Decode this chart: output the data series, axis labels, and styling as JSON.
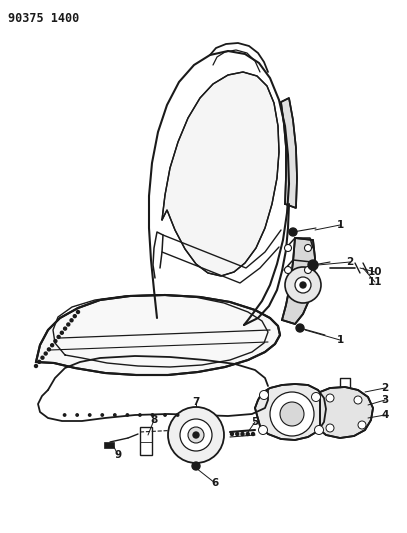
{
  "title_code": "90375 1400",
  "background_color": "#ffffff",
  "line_color": "#1a1a1a",
  "figure_width": 4.07,
  "figure_height": 5.33,
  "dpi": 100
}
